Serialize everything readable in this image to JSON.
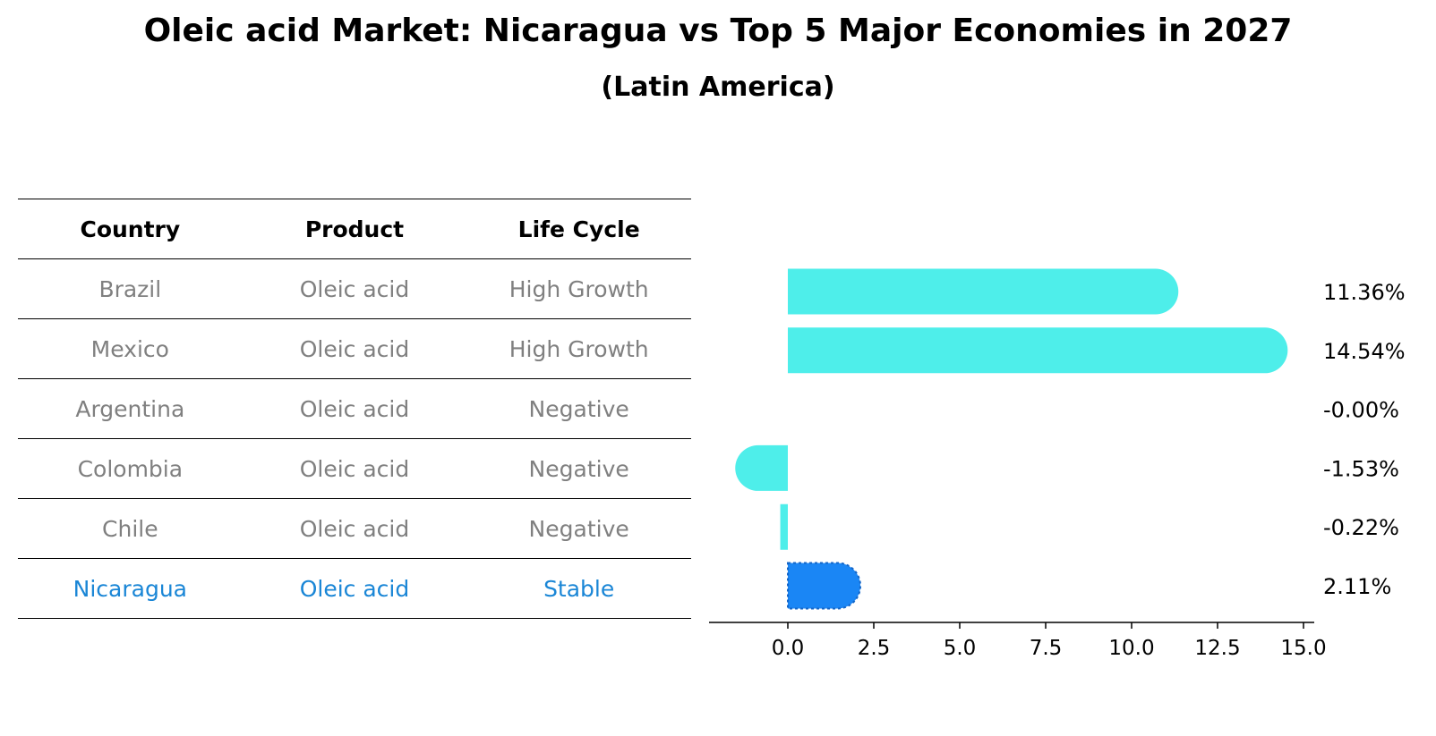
{
  "title": "Oleic acid Market: Nicaragua vs Top 5 Major Economies in 2027",
  "subtitle": "(Latin America)",
  "table": {
    "headers": [
      "Country",
      "Product",
      "Life Cycle"
    ],
    "rows": [
      {
        "country": "Brazil",
        "product": "Oleic acid",
        "life_cycle": "High Growth"
      },
      {
        "country": "Mexico",
        "product": "Oleic acid",
        "life_cycle": "High Growth"
      },
      {
        "country": "Argentina",
        "product": "Oleic acid",
        "life_cycle": "Negative"
      },
      {
        "country": "Colombia",
        "product": "Oleic acid",
        "life_cycle": "Negative"
      },
      {
        "country": "Chile",
        "product": "Oleic acid",
        "life_cycle": "Negative"
      },
      {
        "country": "Nicaragua",
        "product": "Oleic acid",
        "life_cycle": "Stable"
      }
    ]
  },
  "chart_data": {
    "type": "bar",
    "orientation": "horizontal",
    "categories": [
      "Brazil",
      "Mexico",
      "Argentina",
      "Colombia",
      "Chile",
      "Nicaragua"
    ],
    "values": [
      11.36,
      14.54,
      -0.0,
      -1.53,
      -0.22,
      2.11
    ],
    "value_labels": [
      "11.36%",
      "14.54%",
      "-0.00%",
      "-1.53%",
      "-0.22%",
      "2.11%"
    ],
    "xlim": [
      -2.3,
      15.4
    ],
    "xticks": [
      0.0,
      2.5,
      5.0,
      7.5,
      10.0,
      12.5,
      15.0
    ],
    "xtick_labels": [
      "0.0",
      "2.5",
      "5.0",
      "7.5",
      "10.0",
      "12.5",
      "15.0"
    ],
    "grid": false,
    "colors": {
      "bar": "#4eeeea",
      "highlight": "#1a86f5"
    },
    "highlight_category": "Nicaragua"
  },
  "colors": {
    "table_text": "#808080",
    "highlight_text": "#1a86d6"
  }
}
